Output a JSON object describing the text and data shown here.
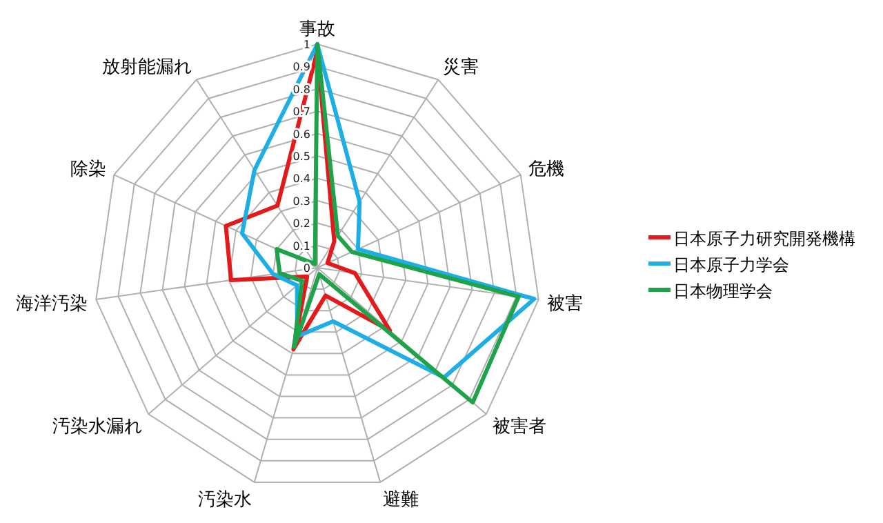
{
  "chart_data": {
    "type": "radar",
    "categories": [
      "事故",
      "災害",
      "危機",
      "被害",
      "被害者",
      "避難",
      "汚染水",
      "汚染水漏れ",
      "海洋汚染",
      "除染",
      "放射能漏れ"
    ],
    "ylim": [
      0,
      1
    ],
    "yticks": [
      0,
      0.1,
      0.2,
      0.3,
      0.4,
      0.5,
      0.6,
      0.7,
      0.8,
      0.9,
      1
    ],
    "legend": "right",
    "grid": true,
    "series": [
      {
        "name": "日本原子力研究開発機構",
        "color": "#e31a1c",
        "values": [
          0.97,
          0.14,
          0.05,
          0.17,
          0.43,
          0.13,
          0.38,
          0.06,
          0.39,
          0.45,
          0.33
        ]
      },
      {
        "name": "日本原子力学会",
        "color": "#1eaee6",
        "values": [
          1,
          0.35,
          0.2,
          0.98,
          0.75,
          0.25,
          0.32,
          0.12,
          0.2,
          0.37,
          0.52
        ]
      },
      {
        "name": "日本物理学会",
        "color": "#1fa34a",
        "values": [
          1,
          0.17,
          0.17,
          0.91,
          0.92,
          0.03,
          0.37,
          0.09,
          0.17,
          0.2,
          0.02
        ]
      }
    ]
  }
}
